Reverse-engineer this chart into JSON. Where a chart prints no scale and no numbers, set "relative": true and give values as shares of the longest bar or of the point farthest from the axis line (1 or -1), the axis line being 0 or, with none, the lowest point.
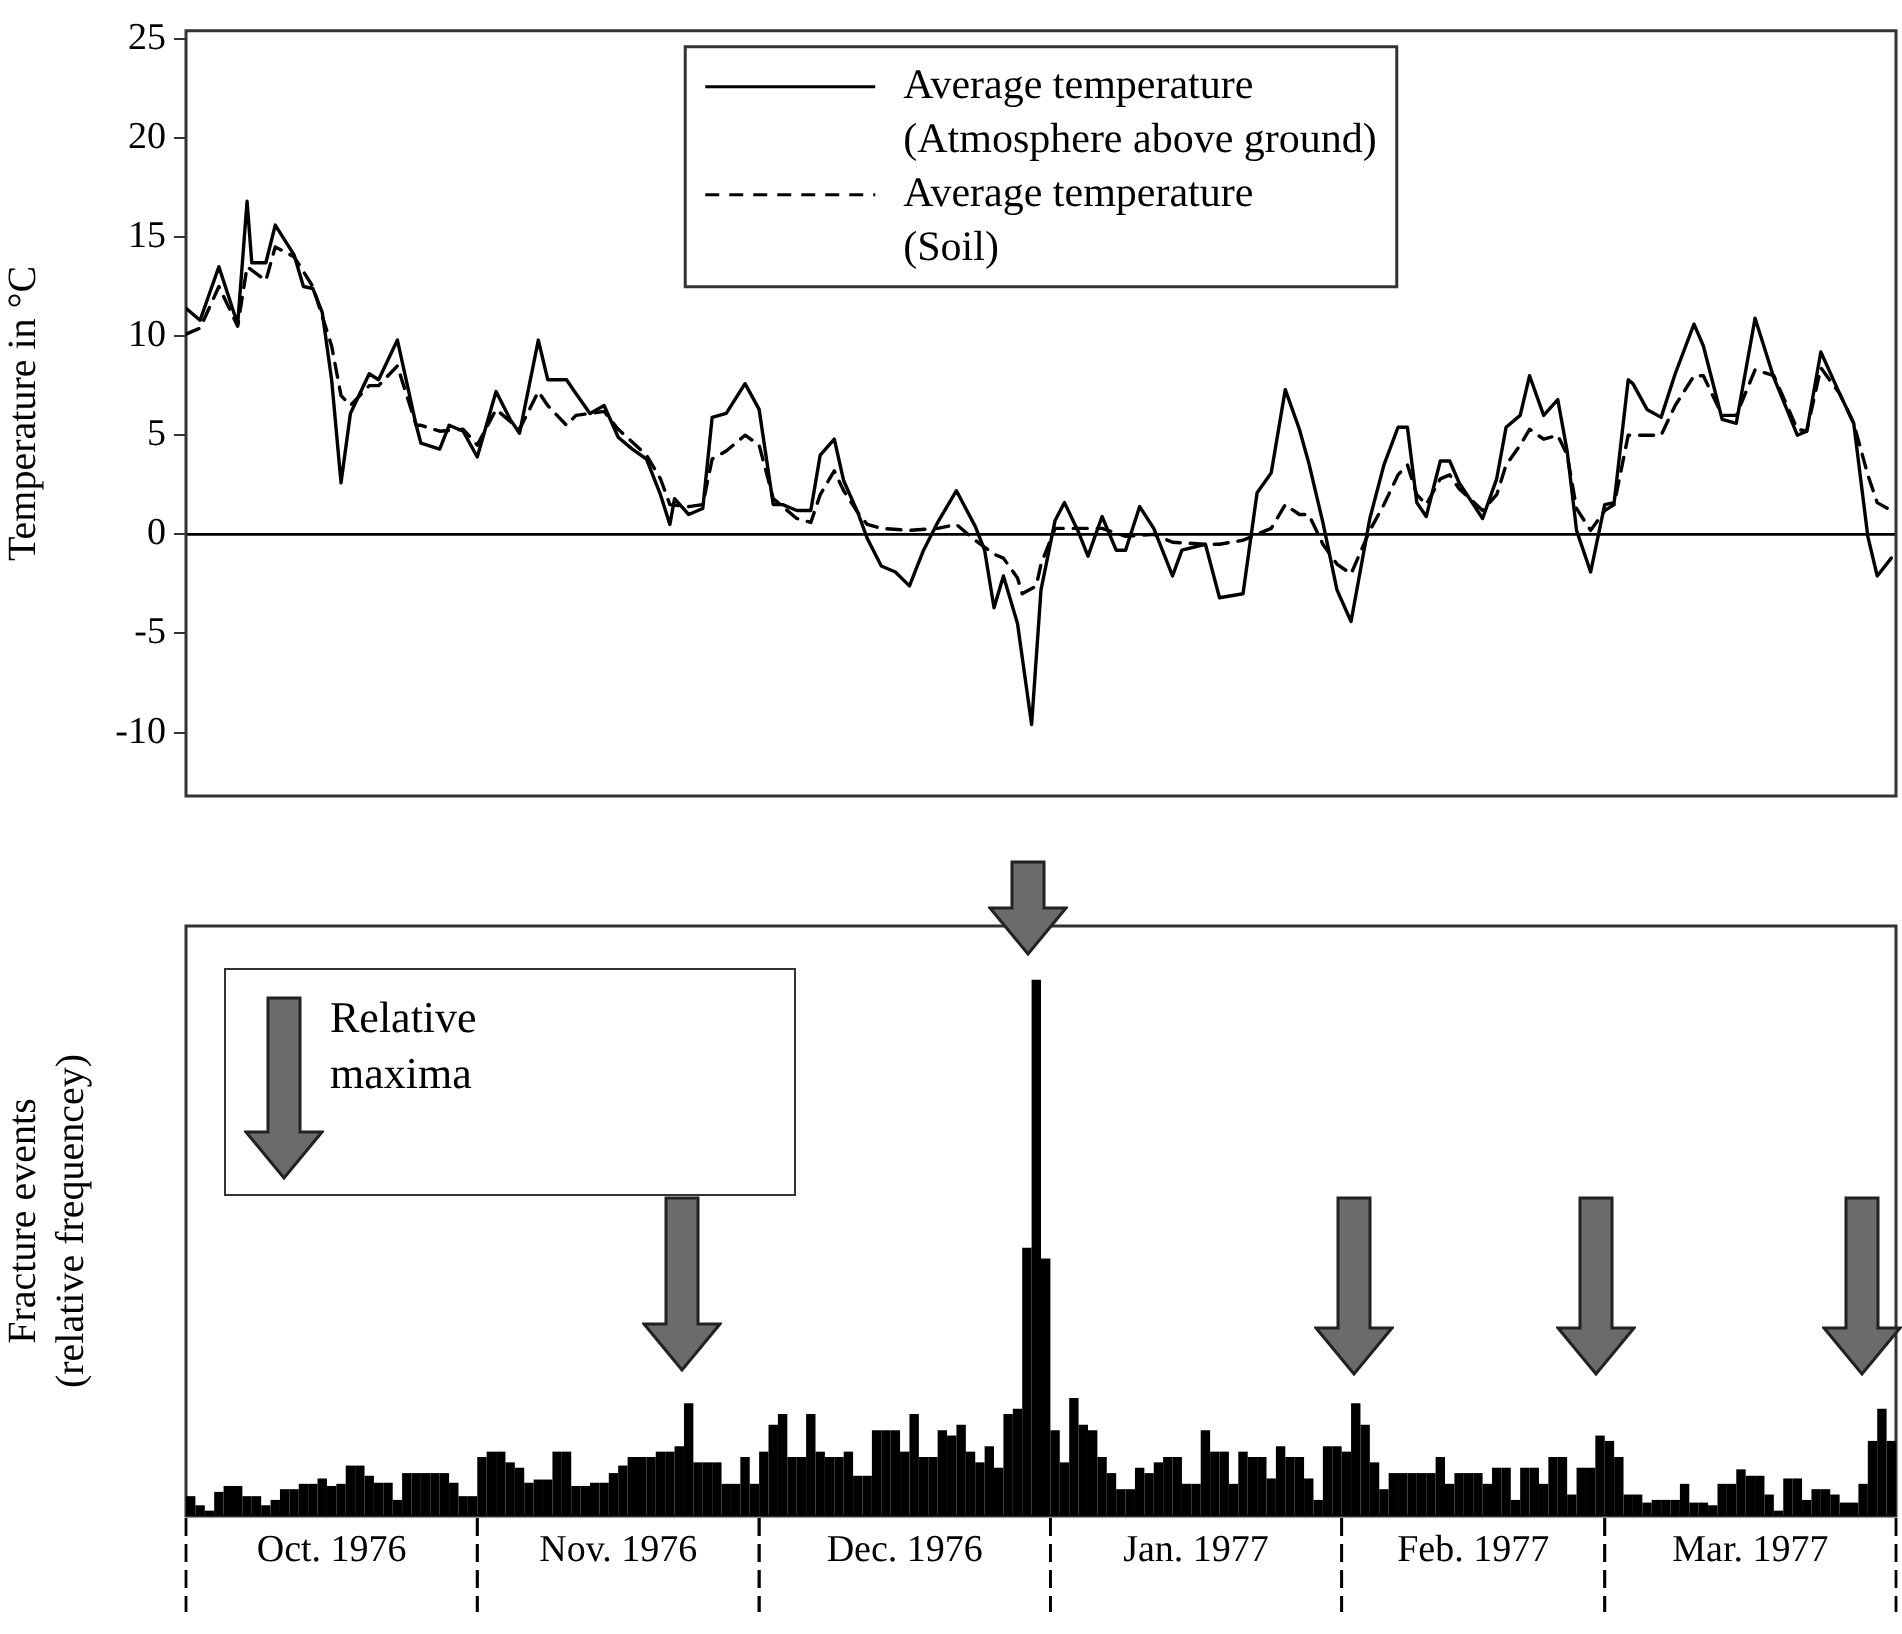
{
  "chart_data": [
    {
      "type": "line",
      "ylabel": "Temperature in °C",
      "xlim": [
        "1976-10-01",
        "1977-04-01"
      ],
      "ylim": [
        -13.2,
        25.4
      ],
      "yticks": [
        -10,
        -5,
        0,
        5,
        10,
        15,
        20,
        25
      ],
      "tick_labels": "y",
      "legend": "top",
      "marker": "none",
      "ref_lines": [
        {
          "axis": "y",
          "value": 0,
          "color": "#000000"
        }
      ],
      "series": [
        {
          "name": "Average temperature (Atmosphere above ground)",
          "color": "#000000",
          "line_style": "solid",
          "x": [
            "1976-10-01",
            "1976-10-02T12:00",
            "1976-10-04T12:00",
            "1976-10-06T12:00",
            "1976-10-07T12:00",
            "1976-10-08",
            "1976-10-09T12:00",
            "1976-10-10T12:00",
            "1976-10-12T12:00",
            "1976-10-13T12:00",
            "1976-10-14T12:00",
            "1976-10-15T12:00",
            "1976-10-16T12:00",
            "1976-10-17T12:00",
            "1976-10-18T12:00",
            "1976-10-20T12:00",
            "1976-10-21T12:00",
            "1976-10-23T12:00",
            "1976-10-25T12:00",
            "1976-10-26",
            "1976-10-28",
            "1976-10-29",
            "1976-10-30T12:00",
            "1976-11-01",
            "1976-11-03",
            "1976-11-04T12:00",
            "1976-11-05T12:00",
            "1976-11-07T12:00",
            "1976-11-08T12:00",
            "1976-11-10T12:00",
            "1976-11-11T12:00",
            "1976-11-13",
            "1976-11-14T12:00",
            "1976-11-16",
            "1976-11-17T12:00",
            "1976-11-19",
            "1976-11-20T12:00",
            "1976-11-21T12:00",
            "1976-11-22",
            "1976-11-23T12:00",
            "1976-11-25",
            "1976-11-26",
            "1976-11-27T12:00",
            "1976-11-29T12:00",
            "1976-12-01",
            "1976-12-02T12:00",
            "1976-12-03T12:00",
            "1976-12-05",
            "1976-12-06T12:00",
            "1976-12-07T12:00",
            "1976-12-09",
            "1976-12-10",
            "1976-12-11T12:00",
            "1976-12-12T12:00",
            "1976-12-14",
            "1976-12-15T12:00",
            "1976-12-17",
            "1976-12-18T12:00",
            "1976-12-20",
            "1976-12-22",
            "1976-12-24",
            "1976-12-25",
            "1976-12-26",
            "1976-12-27",
            "1976-12-28T12:00",
            "1976-12-30",
            "1976-12-31",
            "1977-01-01T12:00",
            "1977-01-02T12:00",
            "1977-01-04",
            "1977-01-05",
            "1977-01-06T12:00",
            "1977-01-08",
            "1977-01-09",
            "1977-01-10T12:00",
            "1977-01-12",
            "1977-01-14",
            "1977-01-15",
            "1977-01-17T12:00",
            "1977-01-19",
            "1977-01-21T12:00",
            "1977-01-23",
            "1977-01-24T12:00",
            "1977-01-26",
            "1977-01-27T12:00",
            "1977-01-28T12:00",
            "1977-01-30",
            "1977-01-31T12:00",
            "1977-02-02",
            "1977-02-04",
            "1977-02-05T12:00",
            "1977-02-07",
            "1977-02-08",
            "1977-02-09",
            "1977-02-10",
            "1977-02-11T12:00",
            "1977-02-12T12:00",
            "1977-02-13T12:00",
            "1977-02-16",
            "1977-02-17T12:00",
            "1977-02-18T12:00",
            "1977-02-20",
            "1977-02-21",
            "1977-02-22T12:00",
            "1977-02-24",
            "1977-02-25",
            "1977-02-26",
            "1977-02-27T12:00",
            "1977-03-01",
            "1977-03-02",
            "1977-03-03T12:00",
            "1977-03-04",
            "1977-03-05T12:00",
            "1977-03-07",
            "1977-03-08T12:00",
            "1977-03-10T12:00",
            "1977-03-11T12:00",
            "1977-03-13T12:00",
            "1977-03-15",
            "1977-03-17",
            "1977-03-19",
            "1977-03-21T12:00",
            "1977-03-22T12:00",
            "1977-03-24",
            "1977-03-26",
            "1977-03-27T12:00",
            "1977-03-29",
            "1977-03-30",
            "1977-03-31T12:00"
          ],
          "values": [
            11.4,
            10.8,
            13.5,
            10.6,
            16.8,
            13.7,
            13.7,
            15.6,
            14.1,
            12.5,
            12.4,
            11.2,
            7.8,
            2.6,
            6.1,
            8.1,
            7.8,
            9.8,
            5.5,
            4.6,
            4.3,
            5.5,
            5.2,
            3.9,
            7.2,
            5.8,
            5.1,
            9.8,
            7.8,
            7.8,
            7.1,
            6.1,
            6.5,
            4.9,
            4.3,
            3.8,
            2.0,
            0.5,
            1.8,
            1.0,
            1.3,
            5.9,
            6.1,
            7.6,
            6.3,
            1.5,
            1.5,
            1.2,
            1.2,
            4.0,
            4.8,
            2.7,
            1.1,
            -0.2,
            -1.6,
            -1.9,
            -2.6,
            -0.8,
            0.6,
            2.2,
            0.4,
            -0.8,
            -3.7,
            -2.1,
            -4.5,
            -9.6,
            -2.8,
            0.7,
            1.6,
            0.1,
            -1.1,
            0.9,
            -0.8,
            -0.8,
            1.4,
            0.3,
            -2.1,
            -0.8,
            -0.5,
            -3.2,
            -3.0,
            2.1,
            3.1,
            7.3,
            5.3,
            3.6,
            0.6,
            -2.8,
            -4.4,
            0.8,
            3.5,
            5.4,
            5.4,
            1.6,
            0.9,
            3.7,
            3.7,
            2.6,
            0.8,
            2.8,
            5.4,
            6.0,
            8.0,
            6.0,
            6.8,
            4.2,
            0.2,
            -1.9,
            1.5,
            1.6,
            7.8,
            7.6,
            6.3,
            5.9,
            8.1,
            10.6,
            9.5,
            5.8,
            5.6,
            10.9,
            7.9,
            5.0,
            5.2,
            9.2,
            7.1,
            5.6,
            -0.1,
            -2.1,
            -1.2
          ]
        },
        {
          "name": "Average temperature (Soil)",
          "color": "#000000",
          "line_style": "dashed",
          "x": [
            "1976-10-01",
            "1976-10-02T12:00",
            "1976-10-04T12:00",
            "1976-10-06T12:00",
            "1976-10-07T12:00",
            "1976-10-09T12:00",
            "1976-10-10T12:00",
            "1976-10-12T12:00",
            "1976-10-14T12:00",
            "1976-10-16T12:00",
            "1976-10-17T12:00",
            "1976-10-18T12:00",
            "1976-10-20T12:00",
            "1976-10-21T12:00",
            "1976-10-23T12:00",
            "1976-10-25T12:00",
            "1976-10-26",
            "1976-10-28",
            "1976-10-30T12:00",
            "1976-11-01",
            "1976-11-03",
            "1976-11-05T12:00",
            "1976-11-07T12:00",
            "1976-11-08T12:00",
            "1976-11-10T12:00",
            "1976-11-11T12:00",
            "1976-11-14T12:00",
            "1976-11-16",
            "1976-11-19",
            "1976-11-20T12:00",
            "1976-11-21T12:00",
            "1976-11-23T12:00",
            "1976-11-25",
            "1976-11-26",
            "1976-11-27T12:00",
            "1976-11-29T12:00",
            "1976-12-01",
            "1976-12-02T12:00",
            "1976-12-05",
            "1976-12-06T12:00",
            "1976-12-07T12:00",
            "1976-12-09",
            "1976-12-10",
            "1976-12-11T12:00",
            "1976-12-12T12:00",
            "1976-12-14",
            "1976-12-17",
            "1976-12-20",
            "1976-12-22",
            "1976-12-24",
            "1976-12-26",
            "1976-12-27",
            "1976-12-28T12:00",
            "1976-12-29",
            "1976-12-30T12:00",
            "1976-12-31",
            "1977-01-01T12:00",
            "1977-01-04",
            "1977-01-06T12:00",
            "1977-01-09",
            "1977-01-12",
            "1977-01-14",
            "1977-01-17T12:00",
            "1977-01-19",
            "1977-01-21T12:00",
            "1977-01-23",
            "1977-01-24T12:00",
            "1977-01-26",
            "1977-01-27T12:00",
            "1977-01-28T12:00",
            "1977-01-30",
            "1977-01-31T12:00",
            "1977-02-02",
            "1977-02-04",
            "1977-02-05T12:00",
            "1977-02-07",
            "1977-02-08",
            "1977-02-09",
            "1977-02-10",
            "1977-02-11T12:00",
            "1977-02-12T12:00",
            "1977-02-13T12:00",
            "1977-02-16",
            "1977-02-17T12:00",
            "1977-02-18T12:00",
            "1977-02-20",
            "1977-02-21",
            "1977-02-22T12:00",
            "1977-02-24",
            "1977-02-25",
            "1977-02-26",
            "1977-02-27T12:00",
            "1977-03-01",
            "1977-03-02",
            "1977-03-03T12:00",
            "1977-03-05T12:00",
            "1977-03-07",
            "1977-03-08T12:00",
            "1977-03-10T12:00",
            "1977-03-11T12:00",
            "1977-03-13T12:00",
            "1977-03-15",
            "1977-03-17",
            "1977-03-19",
            "1977-03-21T12:00",
            "1977-03-22T12:00",
            "1977-03-24",
            "1977-03-26",
            "1977-03-27T12:00",
            "1977-03-29",
            "1977-03-30",
            "1977-03-31T12:00"
          ],
          "values": [
            10.1,
            10.4,
            12.5,
            10.5,
            13.5,
            12.8,
            14.5,
            14,
            12.5,
            9.5,
            7,
            6.5,
            7.5,
            7.5,
            8.5,
            5.5,
            5.5,
            5.2,
            5.3,
            4.5,
            6.3,
            5.3,
            7.2,
            6.5,
            5.5,
            6.0,
            6.2,
            5.3,
            4.0,
            2.8,
            1.5,
            1.4,
            1.5,
            3.8,
            4.2,
            5.0,
            4.5,
            1.8,
            0.8,
            0.6,
            2.0,
            3.2,
            2.2,
            1.1,
            0.5,
            0.3,
            0.2,
            0.3,
            0.5,
            -0.3,
            -1,
            -1.2,
            -2.2,
            -3.0,
            -2.6,
            -1.5,
            0.3,
            0.3,
            0.3,
            -0.1,
            0,
            -0.4,
            -0.5,
            -0.5,
            -0.3,
            0,
            0.3,
            1.5,
            1.0,
            1.0,
            -0.5,
            -1.5,
            -2.0,
            0.2,
            1.5,
            3,
            3.5,
            2,
            1.5,
            2.8,
            3,
            2.3,
            1.2,
            2.0,
            3.5,
            4.5,
            5.3,
            4.8,
            5.0,
            4.0,
            1.3,
            0.2,
            1.2,
            1.5,
            5,
            5,
            5,
            6.5,
            8,
            8,
            6.0,
            6.0,
            8.3,
            8,
            5.3,
            5.2,
            8.4,
            7.1,
            5.6,
            3,
            1.6,
            1.2
          ]
        }
      ]
    },
    {
      "type": "bar",
      "relative": true,
      "ylabel": "Fracture events (relative frequencey)",
      "tick_labels": "x",
      "xlim": [
        "1976-10-01",
        "1977-04-01"
      ],
      "xticks": [
        {
          "value": "1976-10-16T12:00",
          "label": "Oct. 1976"
        },
        {
          "value": "1976-11-16",
          "label": "Nov. 1976"
        },
        {
          "value": "1976-12-16T12:00",
          "label": "Dec. 1976"
        },
        {
          "value": "1977-01-16T12:00",
          "label": "Jan. 1977"
        },
        {
          "value": "1977-02-15",
          "label": "Feb. 1977"
        },
        {
          "value": "1977-03-16T12:00",
          "label": "Mar. 1977"
        }
      ],
      "annotations": [
        "Relative maxima"
      ],
      "color": "#000000",
      "x": [
        "1976-10-01T12:00",
        "1976-10-02T12:00",
        "1976-10-03T12:00",
        "1976-10-04T12:00",
        "1976-10-05T12:00",
        "1976-10-06T12:00",
        "1976-10-07T12:00",
        "1976-10-08T12:00",
        "1976-10-09T12:00",
        "1976-10-10T12:00",
        "1976-10-11T12:00",
        "1976-10-12T12:00",
        "1976-10-13T12:00",
        "1976-10-14T12:00",
        "1976-10-15T12:00",
        "1976-10-16T12:00",
        "1976-10-17T12:00",
        "1976-10-18T12:00",
        "1976-10-19T12:00",
        "1976-10-20T12:00",
        "1976-10-21T12:00",
        "1976-10-22T12:00",
        "1976-10-23T12:00",
        "1976-10-24T12:00",
        "1976-10-25T12:00",
        "1976-10-26T12:00",
        "1976-10-27T12:00",
        "1976-10-28T12:00",
        "1976-10-29T12:00",
        "1976-10-30T12:00",
        "1976-10-31T12:00",
        "1976-11-01T12:00",
        "1976-11-02T12:00",
        "1976-11-03T12:00",
        "1976-11-04T12:00",
        "1976-11-05T12:00",
        "1976-11-06T12:00",
        "1976-11-07T12:00",
        "1976-11-08T12:00",
        "1976-11-09T12:00",
        "1976-11-10T12:00",
        "1976-11-11T12:00",
        "1976-11-12T12:00",
        "1976-11-13T12:00",
        "1976-11-14T12:00",
        "1976-11-15T12:00",
        "1976-11-16T12:00",
        "1976-11-17T12:00",
        "1976-11-18T12:00",
        "1976-11-19T12:00",
        "1976-11-20T12:00",
        "1976-11-21T12:00",
        "1976-11-22T12:00",
        "1976-11-23T12:00",
        "1976-11-24T12:00",
        "1976-11-25T12:00",
        "1976-11-26T12:00",
        "1976-11-27T12:00",
        "1976-11-28T12:00",
        "1976-11-29T12:00",
        "1976-11-30T12:00",
        "1976-12-01T12:00",
        "1976-12-02T12:00",
        "1976-12-03T12:00",
        "1976-12-04T12:00",
        "1976-12-05T12:00",
        "1976-12-06T12:00",
        "1976-12-07T12:00",
        "1976-12-08T12:00",
        "1976-12-09T12:00",
        "1976-12-10T12:00",
        "1976-12-11T12:00",
        "1976-12-12T12:00",
        "1976-12-13T12:00",
        "1976-12-14T12:00",
        "1976-12-15T12:00",
        "1976-12-16T12:00",
        "1976-12-17T12:00",
        "1976-12-18T12:00",
        "1976-12-19T12:00",
        "1976-12-20T12:00",
        "1976-12-21T12:00",
        "1976-12-22T12:00",
        "1976-12-23T12:00",
        "1976-12-24T12:00",
        "1976-12-25T12:00",
        "1976-12-26T12:00",
        "1976-12-27T12:00",
        "1976-12-28T12:00",
        "1976-12-29T12:00",
        "1976-12-30T12:00",
        "1976-12-31T12:00",
        "1977-01-01T12:00",
        "1977-01-02T12:00",
        "1977-01-03T12:00",
        "1977-01-04T12:00",
        "1977-01-05T12:00",
        "1977-01-06T12:00",
        "1977-01-07T12:00",
        "1977-01-08T12:00",
        "1977-01-09T12:00",
        "1977-01-10T12:00",
        "1977-01-11T12:00",
        "1977-01-12T12:00",
        "1977-01-13T12:00",
        "1977-01-14T12:00",
        "1977-01-15T12:00",
        "1977-01-16T12:00",
        "1977-01-17T12:00",
        "1977-01-18T12:00",
        "1977-01-19T12:00",
        "1977-01-20T12:00",
        "1977-01-21T12:00",
        "1977-01-22T12:00",
        "1977-01-23T12:00",
        "1977-01-24T12:00",
        "1977-01-25T12:00",
        "1977-01-26T12:00",
        "1977-01-27T12:00",
        "1977-01-28T12:00",
        "1977-01-29T12:00",
        "1977-01-30T12:00",
        "1977-01-31T12:00",
        "1977-02-01T12:00",
        "1977-02-02T12:00",
        "1977-02-03T12:00",
        "1977-02-04T12:00",
        "1977-02-05T12:00",
        "1977-02-06T12:00",
        "1977-02-07T12:00",
        "1977-02-08T12:00",
        "1977-02-09T12:00",
        "1977-02-10T12:00",
        "1977-02-11T12:00",
        "1977-02-12T12:00",
        "1977-02-13T12:00",
        "1977-02-14T12:00",
        "1977-02-15T12:00",
        "1977-02-16T12:00",
        "1977-02-17T12:00",
        "1977-02-18T12:00",
        "1977-02-19T12:00",
        "1977-02-20T12:00",
        "1977-02-21T12:00",
        "1977-02-22T12:00",
        "1977-02-23T12:00",
        "1977-02-24T12:00",
        "1977-02-25T12:00",
        "1977-02-26T12:00",
        "1977-02-27T12:00",
        "1977-02-28T12:00",
        "1977-03-01T12:00",
        "1977-03-02T12:00",
        "1977-03-03T12:00",
        "1977-03-04T12:00",
        "1977-03-05T12:00",
        "1977-03-06T12:00",
        "1977-03-07T12:00",
        "1977-03-08T12:00",
        "1977-03-09T12:00",
        "1977-03-10T12:00",
        "1977-03-11T12:00",
        "1977-03-12T12:00",
        "1977-03-13T12:00",
        "1977-03-14T12:00",
        "1977-03-15T12:00",
        "1977-03-16T12:00",
        "1977-03-17T12:00",
        "1977-03-18T12:00",
        "1977-03-19T12:00",
        "1977-03-20T12:00",
        "1977-03-21T12:00",
        "1977-03-22T12:00",
        "1977-03-23T12:00",
        "1977-03-24T12:00",
        "1977-03-25T12:00",
        "1977-03-26T12:00",
        "1977-03-27T12:00",
        "1977-03-28T12:00",
        "1977-03-29T12:00",
        "1977-03-30T12:00",
        "1977-03-31T12:00"
      ],
      "values": [
        0.037,
        0.02,
        0.01,
        0.045,
        0.056,
        0.056,
        0.037,
        0.037,
        0.02,
        0.03,
        0.05,
        0.05,
        0.06,
        0.06,
        0.07,
        0.056,
        0.06,
        0.094,
        0.094,
        0.075,
        0.062,
        0.062,
        0.03,
        0.08,
        0.08,
        0.08,
        0.08,
        0.08,
        0.062,
        0.037,
        0.037,
        0.11,
        0.12,
        0.12,
        0.1,
        0.09,
        0.062,
        0.068,
        0.068,
        0.12,
        0.12,
        0.056,
        0.056,
        0.062,
        0.062,
        0.08,
        0.094,
        0.11,
        0.11,
        0.11,
        0.12,
        0.12,
        0.13,
        0.21,
        0.1,
        0.1,
        0.1,
        0.06,
        0.06,
        0.11,
        0.06,
        0.12,
        0.17,
        0.19,
        0.11,
        0.11,
        0.19,
        0.12,
        0.11,
        0.11,
        0.12,
        0.075,
        0.075,
        0.16,
        0.16,
        0.16,
        0.12,
        0.19,
        0.11,
        0.11,
        0.16,
        0.15,
        0.17,
        0.12,
        0.1,
        0.13,
        0.09,
        0.19,
        0.2,
        0.5,
        1,
        0.48,
        0.16,
        0.1,
        0.22,
        0.17,
        0.16,
        0.11,
        0.08,
        0.05,
        0.05,
        0.09,
        0.08,
        0.1,
        0.11,
        0.11,
        0.06,
        0.06,
        0.16,
        0.12,
        0.12,
        0.06,
        0.12,
        0.11,
        0.11,
        0.07,
        0.13,
        0.11,
        0.11,
        0.07,
        0.03,
        0.13,
        0.13,
        0.12,
        0.21,
        0.17,
        0.1,
        0.05,
        0.08,
        0.08,
        0.08,
        0.08,
        0.08,
        0.11,
        0.06,
        0.08,
        0.08,
        0.08,
        0.06,
        0.09,
        0.09,
        0.03,
        0.09,
        0.09,
        0.06,
        0.11,
        0.11,
        0.04,
        0.09,
        0.09,
        0.15,
        0.14,
        0.11,
        0.04,
        0.04,
        0.025,
        0.03,
        0.03,
        0.03,
        0.06,
        0.025,
        0.025,
        0.02,
        0.06,
        0.06,
        0.087,
        0.075,
        0.075,
        0.04,
        0.01,
        0.07,
        0.07,
        0.03,
        0.05,
        0.05,
        0.04,
        0.025,
        0.025,
        0.06,
        0.14,
        0.2,
        0.14
      ]
    }
  ]
}
